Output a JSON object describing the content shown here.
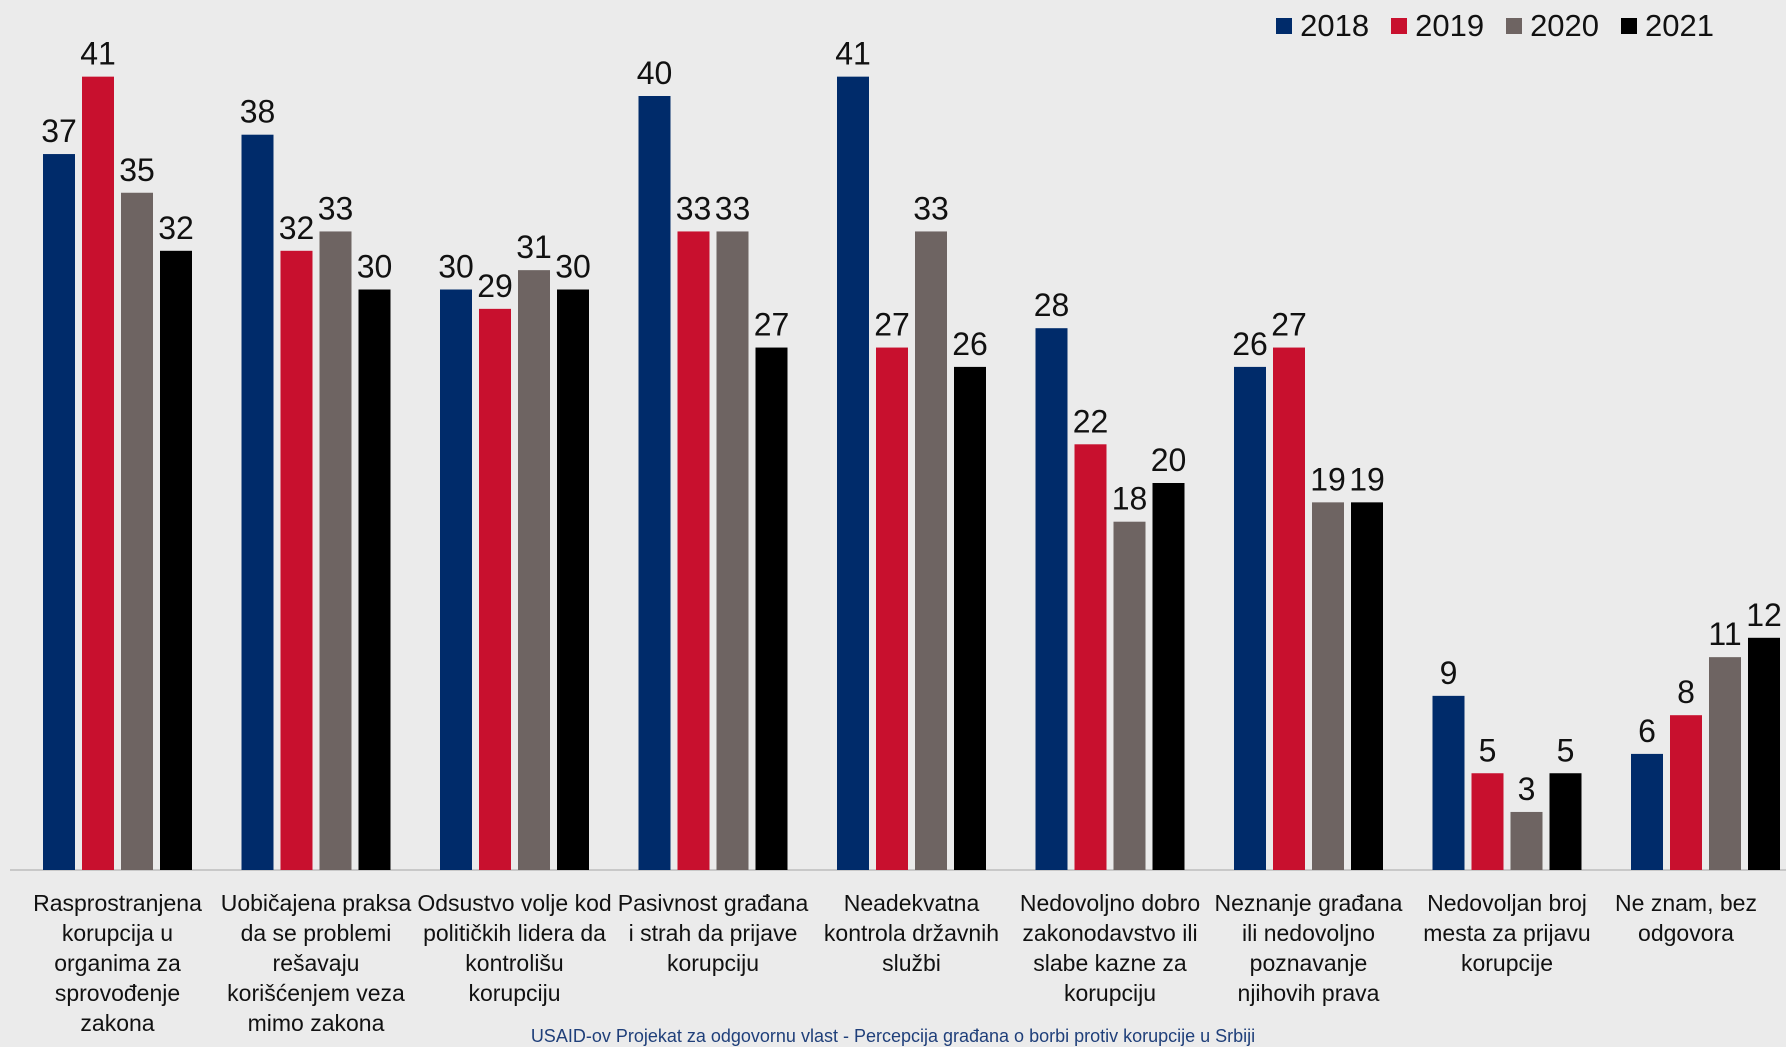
{
  "chart_data": {
    "type": "bar",
    "categories": [
      "Rasprostranjena korupcija u organima za sprovođenje zakona",
      "Uobičajena praksa da se problemi rešavaju korišćenjem veza mimo zakona",
      "Odsustvo volje kod političkih lidera da kontrolišu korupciju",
      "Pasivnost građana i strah da prijave korupciju",
      "Neadekvatna kontrola državnih službi",
      "Nedovoljno dobro zakonodavstvo ili slabe kazne za korupciju",
      "Neznanje građana ili nedovoljno poznavanje njihovih prava",
      "Nedovoljan broj mesta za prijavu korupcije",
      "Ne znam, bez odgovora"
    ],
    "series": [
      {
        "name": "2018",
        "color": "#002b6a",
        "values": [
          37,
          38,
          30,
          40,
          41,
          28,
          26,
          9,
          6
        ]
      },
      {
        "name": "2019",
        "color": "#c8102e",
        "values": [
          41,
          32,
          29,
          33,
          27,
          22,
          27,
          5,
          8
        ]
      },
      {
        "name": "2020",
        "color": "#6e6462",
        "values": [
          35,
          33,
          31,
          33,
          33,
          18,
          19,
          3,
          11
        ]
      },
      {
        "name": "2021",
        "color": "#000000",
        "values": [
          32,
          30,
          30,
          27,
          26,
          20,
          19,
          5,
          12
        ]
      }
    ],
    "ylim": [
      0,
      45
    ],
    "grid": false,
    "legend": "top-right",
    "data_labels": true
  },
  "footer": "USAID-ov Projekat za odgovornu vlast - Percepcija građana o borbi protiv korupcije u Srbiji"
}
